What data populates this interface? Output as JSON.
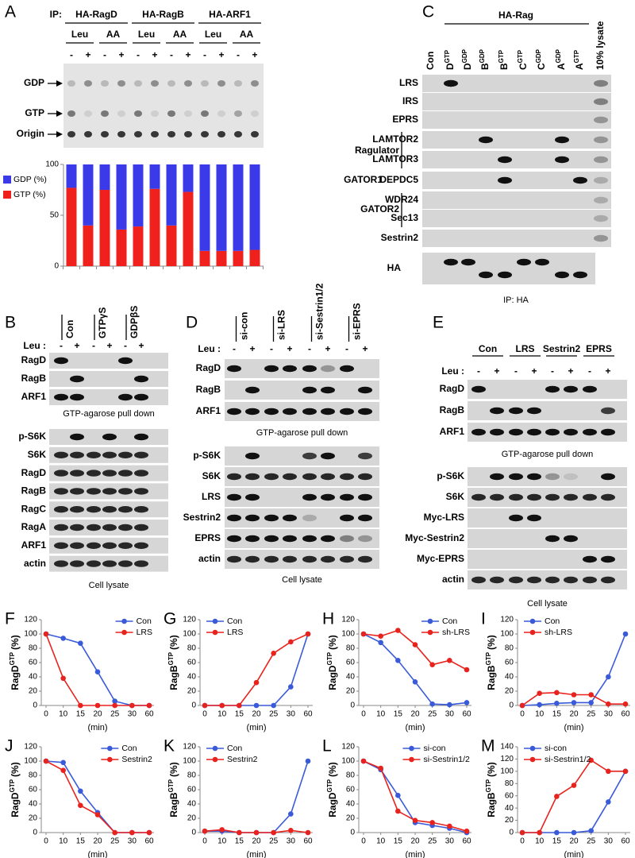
{
  "panels": {
    "A": {
      "letter": "A",
      "ip": "IP:",
      "groups": [
        "HA-RagD",
        "HA-RagB",
        "HA-ARF1"
      ],
      "treatments": [
        "Leu",
        "AA",
        "Leu",
        "AA",
        "Leu",
        "AA"
      ],
      "signs": [
        "-",
        "+",
        "-",
        "+",
        "-",
        "+",
        "-",
        "+",
        "-",
        "+",
        "-",
        "+"
      ],
      "spots": [
        "GDP",
        "GTP",
        "Origin"
      ]
    },
    "B": {
      "letter": "B",
      "columns": [
        "Con",
        "GTPγS",
        "GDPβS"
      ],
      "leu": "Leu :",
      "signs": [
        "-",
        "+",
        "-",
        "+",
        "-",
        "+"
      ],
      "pulldown_rows": [
        "RagD",
        "RagB",
        "ARF1"
      ],
      "pulldown_caption": "GTP-agarose pull down",
      "lysate_rows": [
        "p-S6K",
        "S6K",
        "RagD",
        "RagB",
        "RagC",
        "RagA",
        "ARF1",
        "actin"
      ],
      "lysate_caption": "Cell lysate"
    },
    "C": {
      "letter": "C",
      "header": "HA-Rag",
      "columns": [
        {
          "name": "Con"
        },
        {
          "name": "D",
          "sup": "GTP"
        },
        {
          "name": "D",
          "sup": "GDP"
        },
        {
          "name": "B",
          "sup": "GDP"
        },
        {
          "name": "B",
          "sup": "GTP"
        },
        {
          "name": "C",
          "sup": "GTP"
        },
        {
          "name": "C",
          "sup": "GDP"
        },
        {
          "name": "A",
          "sup": "GDP"
        },
        {
          "name": "A",
          "sup": "GTP"
        },
        {
          "name": "10% lysate"
        }
      ],
      "rows": [
        "LRS",
        "IRS",
        "EPRS",
        "LAMTOR2",
        "LAMTOR3",
        "DEPDC5",
        "WDR24",
        "Sec13",
        "Sestrin2",
        "HA"
      ],
      "groups": [
        "Ragulator",
        "GATOR1",
        "GATOR2"
      ],
      "footer": "IP: HA"
    },
    "D": {
      "letter": "D",
      "columns": [
        "si-con",
        "si-LRS",
        "si-Sestrin1/2",
        "si-EPRS"
      ],
      "leu": "Leu :",
      "signs": [
        "-",
        "+",
        "-",
        "+",
        "-",
        "+",
        "-",
        "+"
      ],
      "pulldown_rows": [
        "RagD",
        "RagB",
        "ARF1"
      ],
      "pulldown_caption": "GTP-agarose pull down",
      "lysate_rows": [
        "p-S6K",
        "S6K",
        "LRS",
        "Sestrin2",
        "EPRS",
        "actin"
      ],
      "lysate_caption": "Cell lysate"
    },
    "E": {
      "letter": "E",
      "columns": [
        "Con",
        "LRS",
        "Sestrin2",
        "EPRS"
      ],
      "leu": "Leu :",
      "signs": [
        "-",
        "+",
        "-",
        "+",
        "-",
        "+",
        "-",
        "+"
      ],
      "pulldown_rows": [
        "RagD",
        "RagB",
        "ARF1"
      ],
      "pulldown_caption": "GTP-agarose pull down",
      "lysate_rows": [
        "p-S6K",
        "S6K",
        "Myc-LRS",
        "Myc-Sestrin2",
        "Myc-EPRS",
        "actin"
      ],
      "lysate_caption": "Cell lysate"
    }
  },
  "chart_data": [
    {
      "type": "bar",
      "stacked": true,
      "legend": "left",
      "series": [
        {
          "name": "GDP (%)",
          "color": "#3a3ae8",
          "values": [
            23,
            60,
            25,
            64,
            61,
            24,
            60,
            27,
            85,
            85,
            85,
            84
          ]
        },
        {
          "name": "GTP (%)",
          "color": "#f0201c",
          "values": [
            77,
            40,
            75,
            36,
            39,
            76,
            40,
            73,
            15,
            15,
            15,
            16
          ]
        }
      ],
      "ylim": [
        0,
        100
      ],
      "yticks": [
        0,
        50,
        100
      ]
    },
    {
      "type": "line",
      "panel": "F",
      "y_label": "RagD",
      "y_label_sup": "GTP",
      "y_label_unit": "(%)",
      "x_label": "(min)",
      "categories": [
        "0",
        "10",
        "15",
        "20",
        "25",
        "30",
        "60"
      ],
      "legend": "upper right",
      "series": [
        {
          "name": "Con",
          "color": "#3a5bd9",
          "values": [
            100,
            94,
            87,
            47,
            6,
            0,
            0
          ]
        },
        {
          "name": "LRS",
          "color": "#e8221d",
          "values": [
            100,
            38,
            0,
            0,
            0,
            0,
            0
          ]
        }
      ],
      "ylim": [
        0,
        120
      ],
      "yticks": [
        0,
        20,
        40,
        60,
        80,
        100,
        120
      ]
    },
    {
      "type": "line",
      "panel": "G",
      "y_label": "RagB",
      "y_label_sup": "GTP",
      "y_label_unit": "(%)",
      "x_label": "(min)",
      "categories": [
        "0",
        "10",
        "15",
        "20",
        "25",
        "30",
        "60"
      ],
      "legend": "upper left",
      "series": [
        {
          "name": "Con",
          "color": "#3a5bd9",
          "values": [
            0,
            0,
            0,
            0,
            0,
            26,
            100
          ]
        },
        {
          "name": "LRS",
          "color": "#e8221d",
          "values": [
            0,
            0,
            0,
            32,
            73,
            89,
            100
          ]
        }
      ],
      "ylim": [
        0,
        120
      ],
      "yticks": [
        0,
        20,
        40,
        60,
        80,
        100,
        120
      ]
    },
    {
      "type": "line",
      "panel": "H",
      "y_label": "RagD",
      "y_label_sup": "GTP",
      "y_label_unit": "(%)",
      "x_label": "(min)",
      "categories": [
        "0",
        "10",
        "15",
        "20",
        "25",
        "30",
        "60"
      ],
      "legend": "upper right",
      "series": [
        {
          "name": "Con",
          "color": "#3a5bd9",
          "values": [
            100,
            88,
            63,
            33,
            2,
            1,
            4
          ]
        },
        {
          "name": "sh-LRS",
          "color": "#e8221d",
          "values": [
            100,
            97,
            105,
            85,
            57,
            63,
            50
          ]
        }
      ],
      "ylim": [
        0,
        120
      ],
      "yticks": [
        0,
        20,
        40,
        60,
        80,
        100,
        120
      ]
    },
    {
      "type": "line",
      "panel": "I",
      "y_label": "RagB",
      "y_label_sup": "GTP",
      "y_label_unit": "(%)",
      "x_label": "(min)",
      "categories": [
        "0",
        "10",
        "15",
        "20",
        "25",
        "30",
        "60"
      ],
      "legend": "upper left",
      "series": [
        {
          "name": "Con",
          "color": "#3a5bd9",
          "values": [
            0,
            1,
            3,
            4,
            4,
            40,
            100
          ]
        },
        {
          "name": "sh-LRS",
          "color": "#e8221d",
          "values": [
            0,
            17,
            18,
            15,
            15,
            2,
            2
          ]
        }
      ],
      "ylim": [
        0,
        120
      ],
      "yticks": [
        0,
        20,
        40,
        60,
        80,
        100,
        120
      ]
    },
    {
      "type": "line",
      "panel": "J",
      "y_label": "RagD",
      "y_label_sup": "GTP",
      "y_label_unit": "(%)",
      "x_label": "(min)",
      "categories": [
        "0",
        "10",
        "15",
        "20",
        "25",
        "30",
        "60"
      ],
      "legend": "upper right",
      "series": [
        {
          "name": "Con",
          "color": "#3a5bd9",
          "values": [
            100,
            98,
            58,
            28,
            0,
            0,
            0
          ]
        },
        {
          "name": "Sestrin2",
          "color": "#e8221d",
          "values": [
            100,
            87,
            38,
            25,
            0,
            0,
            0
          ]
        }
      ],
      "ylim": [
        0,
        120
      ],
      "yticks": [
        0,
        20,
        40,
        60,
        80,
        100,
        120
      ]
    },
    {
      "type": "line",
      "panel": "K",
      "y_label": "RagB",
      "y_label_sup": "GTP",
      "y_label_unit": "(%)",
      "x_label": "(min)",
      "categories": [
        "0",
        "10",
        "15",
        "20",
        "25",
        "30",
        "60"
      ],
      "legend": "upper left",
      "series": [
        {
          "name": "Con",
          "color": "#3a5bd9",
          "values": [
            2,
            2,
            0,
            0,
            0,
            26,
            100
          ]
        },
        {
          "name": "Sestrin2",
          "color": "#e8221d",
          "values": [
            2,
            4,
            0,
            0,
            0,
            3,
            0
          ]
        }
      ],
      "ylim": [
        0,
        120
      ],
      "yticks": [
        0,
        20,
        40,
        60,
        80,
        100,
        120
      ]
    },
    {
      "type": "line",
      "panel": "L",
      "y_label": "RagD",
      "y_label_sup": "GTP",
      "y_label_unit": "(%)",
      "x_label": "(min)",
      "categories": [
        "0",
        "10",
        "15",
        "20",
        "25",
        "30",
        "60"
      ],
      "legend": "upper right",
      "series": [
        {
          "name": "si-con",
          "color": "#3a5bd9",
          "values": [
            100,
            88,
            52,
            14,
            10,
            6,
            0
          ]
        },
        {
          "name": "si-Sestrin1/2",
          "color": "#e8221d",
          "values": [
            100,
            90,
            30,
            17,
            14,
            9,
            2
          ]
        }
      ],
      "ylim": [
        0,
        120
      ],
      "yticks": [
        0,
        20,
        40,
        60,
        80,
        100,
        120
      ]
    },
    {
      "type": "line",
      "panel": "M",
      "y_label": "RagB",
      "y_label_sup": "GTP",
      "y_label_unit": "(%)",
      "x_label": "(min)",
      "categories": [
        "0",
        "10",
        "15",
        "20",
        "25",
        "30",
        "60"
      ],
      "legend": "upper left",
      "series": [
        {
          "name": "si-con",
          "color": "#3a5bd9",
          "values": [
            0,
            0,
            0,
            0,
            3,
            50,
            100
          ]
        },
        {
          "name": "si-Sestrin1/2",
          "color": "#e8221d",
          "values": [
            0,
            0,
            59,
            77,
            118,
            100,
            100
          ]
        }
      ],
      "ylim": [
        0,
        140
      ],
      "yticks": [
        0,
        20,
        40,
        60,
        80,
        100,
        120,
        140
      ]
    }
  ]
}
